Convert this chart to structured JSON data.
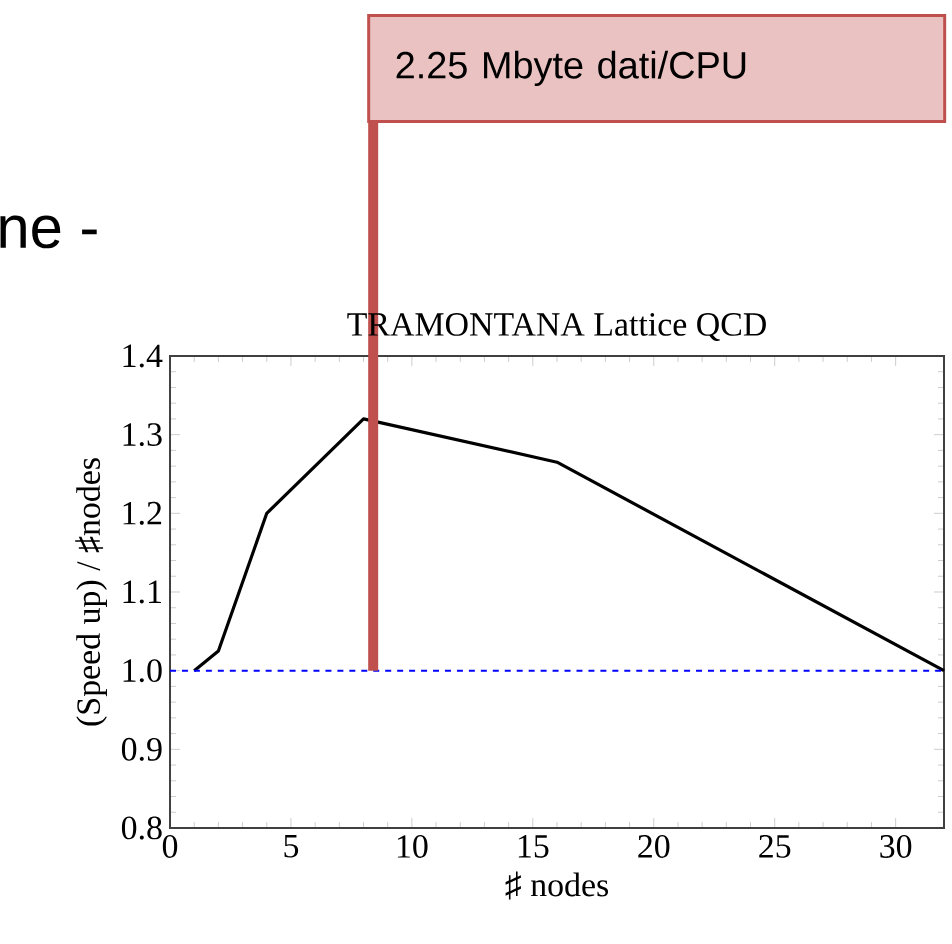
{
  "chart_data": {
    "type": "line",
    "title": "TRAMONTANA Lattice QCD",
    "xlabel": "♯ nodes",
    "ylabel": "(Speed up) / ♯nodes",
    "x": [
      1,
      2,
      4,
      8,
      16,
      32
    ],
    "series": [
      {
        "color": "#000000",
        "values": [
          1.0,
          1.025,
          1.2,
          1.32,
          1.265,
          1.0
        ]
      }
    ],
    "xlim": [
      0,
      32
    ],
    "ylim": [
      0.8,
      1.4
    ],
    "xticks": [
      0,
      5,
      10,
      15,
      20,
      25,
      30
    ],
    "yticks": [
      0.8,
      0.9,
      {
        "value": 1.0,
        "label": "1.0"
      },
      1.1,
      1.2,
      1.3,
      1.4
    ],
    "ref_lines": [
      {
        "axis": "y",
        "value": 1.0,
        "color": "#0000ff",
        "line_style": "dashed"
      },
      {
        "axis": "x",
        "value": 8.4,
        "label": "2.25 Mbyte dati/CPU",
        "color": "#c0504d",
        "line_style": "solid"
      }
    ],
    "annotations": [
      "ne -"
    ],
    "marker": "none",
    "line_style": "solid"
  }
}
